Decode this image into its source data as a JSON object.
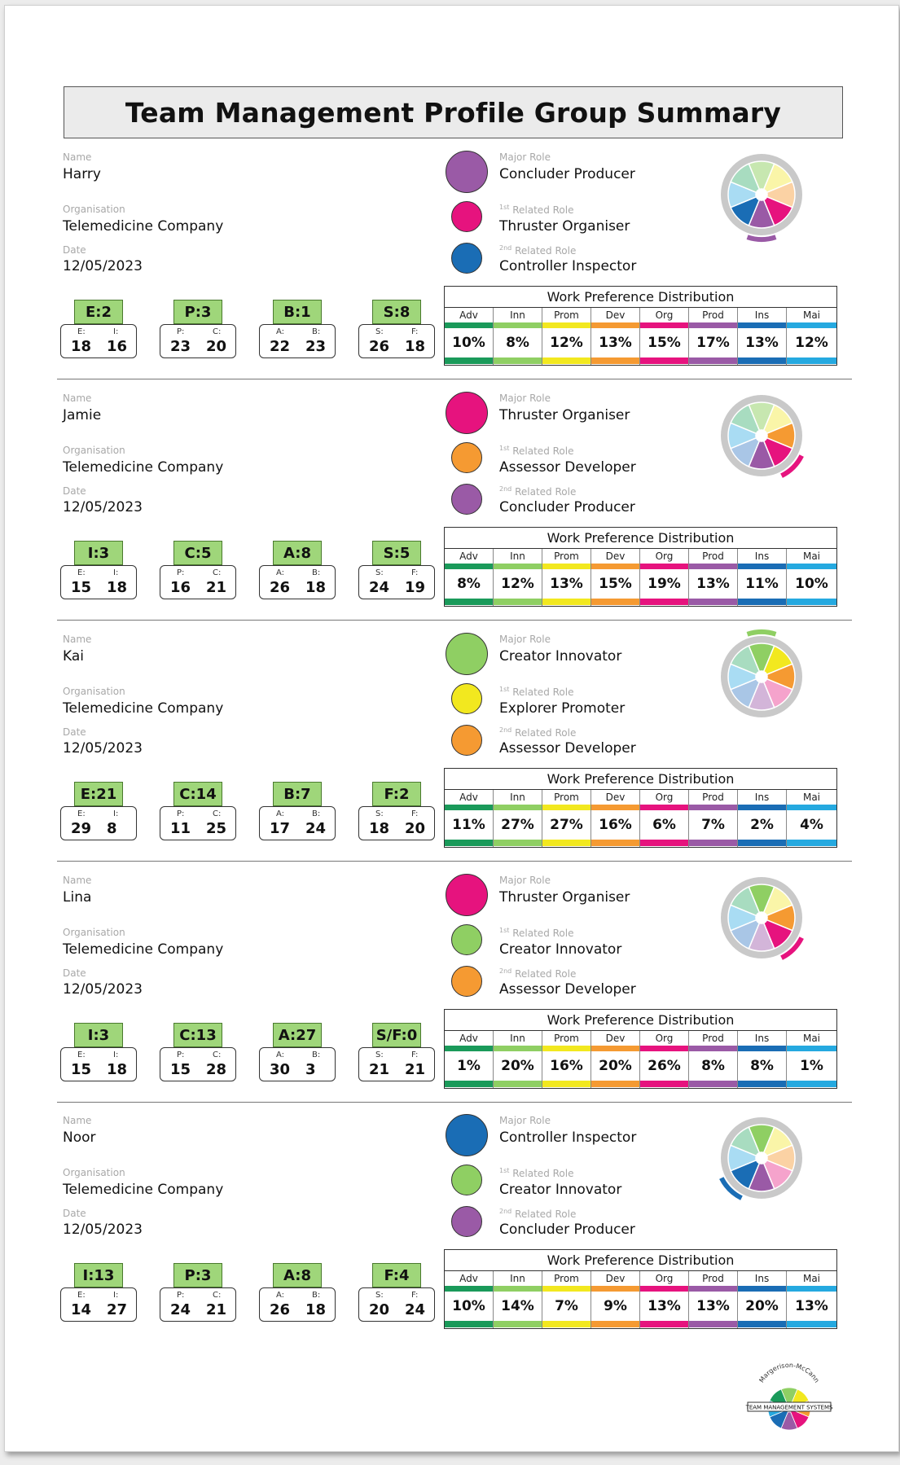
{
  "title": "Team Management Profile Group Summary",
  "labels": {
    "name": "Name",
    "organisation": "Organisation",
    "date": "Date",
    "major_role": "Major Role",
    "related_1": "Related Role",
    "related_1_sup": "1st",
    "related_2": "Related Role",
    "related_2_sup": "2nd",
    "wpd_title": "Work Preference Distribution"
  },
  "wpd_headers": [
    "Adv",
    "Inn",
    "Prom",
    "Dev",
    "Org",
    "Prod",
    "Ins",
    "Mai"
  ],
  "wpd_colors": [
    "#1a9a5a",
    "#8fcf63",
    "#f2e81f",
    "#f59a32",
    "#e6137e",
    "#9a5aa6",
    "#1a6db5",
    "#25a9e0"
  ],
  "role_colors": {
    "Concluder Producer": "#9a5aa6",
    "Thruster Organiser": "#e6137e",
    "Controller Inspector": "#1a6db5",
    "Assessor Developer": "#f59a32",
    "Creator Innovator": "#8fcf63",
    "Explorer Promoter": "#f2e81f"
  },
  "profiles": [
    {
      "name": "Harry",
      "organisation": "Telemedicine Company",
      "date": "12/05/2023",
      "major_role": "Concluder Producer",
      "related_1": "Thruster Organiser",
      "related_2": "Controller Inspector",
      "scores": [
        {
          "tag": "E:2",
          "l1": "E:",
          "l2": "I:",
          "v1": "18",
          "v2": "16"
        },
        {
          "tag": "P:3",
          "l1": "P:",
          "l2": "C:",
          "v1": "23",
          "v2": "20"
        },
        {
          "tag": "B:1",
          "l1": "A:",
          "l2": "B:",
          "v1": "22",
          "v2": "23"
        },
        {
          "tag": "S:8",
          "l1": "S:",
          "l2": "F:",
          "v1": "26",
          "v2": "18"
        }
      ],
      "wpd": [
        "10%",
        "8%",
        "12%",
        "13%",
        "15%",
        "17%",
        "13%",
        "12%"
      ]
    },
    {
      "name": "Jamie",
      "organisation": "Telemedicine Company",
      "date": "12/05/2023",
      "major_role": "Thruster Organiser",
      "related_1": "Assessor Developer",
      "related_2": "Concluder Producer",
      "scores": [
        {
          "tag": "I:3",
          "l1": "E:",
          "l2": "I:",
          "v1": "15",
          "v2": "18"
        },
        {
          "tag": "C:5",
          "l1": "P:",
          "l2": "C:",
          "v1": "16",
          "v2": "21"
        },
        {
          "tag": "A:8",
          "l1": "A:",
          "l2": "B:",
          "v1": "26",
          "v2": "18"
        },
        {
          "tag": "S:5",
          "l1": "S:",
          "l2": "F:",
          "v1": "24",
          "v2": "19"
        }
      ],
      "wpd": [
        "8%",
        "12%",
        "13%",
        "15%",
        "19%",
        "13%",
        "11%",
        "10%"
      ]
    },
    {
      "name": "Kai",
      "organisation": "Telemedicine Company",
      "date": "12/05/2023",
      "major_role": "Creator Innovator",
      "related_1": "Explorer Promoter",
      "related_2": "Assessor Developer",
      "scores": [
        {
          "tag": "E:21",
          "l1": "E:",
          "l2": "I:",
          "v1": "29",
          "v2": "8"
        },
        {
          "tag": "C:14",
          "l1": "P:",
          "l2": "C:",
          "v1": "11",
          "v2": "25"
        },
        {
          "tag": "B:7",
          "l1": "A:",
          "l2": "B:",
          "v1": "17",
          "v2": "24"
        },
        {
          "tag": "F:2",
          "l1": "S:",
          "l2": "F:",
          "v1": "18",
          "v2": "20"
        }
      ],
      "wpd": [
        "11%",
        "27%",
        "27%",
        "16%",
        "6%",
        "7%",
        "2%",
        "4%"
      ]
    },
    {
      "name": "Lina",
      "organisation": "Telemedicine Company",
      "date": "12/05/2023",
      "major_role": "Thruster Organiser",
      "related_1": "Creator Innovator",
      "related_2": "Assessor Developer",
      "scores": [
        {
          "tag": "I:3",
          "l1": "E:",
          "l2": "I:",
          "v1": "15",
          "v2": "18"
        },
        {
          "tag": "C:13",
          "l1": "P:",
          "l2": "C:",
          "v1": "15",
          "v2": "28"
        },
        {
          "tag": "A:27",
          "l1": "A:",
          "l2": "B:",
          "v1": "30",
          "v2": "3"
        },
        {
          "tag": "S/F:0",
          "l1": "S:",
          "l2": "F:",
          "v1": "21",
          "v2": "21"
        }
      ],
      "wpd": [
        "1%",
        "20%",
        "16%",
        "20%",
        "26%",
        "8%",
        "8%",
        "1%"
      ]
    },
    {
      "name": "Noor",
      "organisation": "Telemedicine Company",
      "date": "12/05/2023",
      "major_role": "Controller Inspector",
      "related_1": "Creator Innovator",
      "related_2": "Concluder Producer",
      "scores": [
        {
          "tag": "I:13",
          "l1": "E:",
          "l2": "I:",
          "v1": "14",
          "v2": "27"
        },
        {
          "tag": "P:3",
          "l1": "P:",
          "l2": "C:",
          "v1": "24",
          "v2": "21"
        },
        {
          "tag": "A:8",
          "l1": "A:",
          "l2": "B:",
          "v1": "26",
          "v2": "18"
        },
        {
          "tag": "F:4",
          "l1": "S:",
          "l2": "F:",
          "v1": "20",
          "v2": "24"
        }
      ],
      "wpd": [
        "10%",
        "14%",
        "7%",
        "9%",
        "13%",
        "13%",
        "20%",
        "13%"
      ]
    }
  ],
  "logo_text": {
    "arc": "Margerison-McCann",
    "banner": "TEAM MANAGEMENT SYSTEMS"
  }
}
